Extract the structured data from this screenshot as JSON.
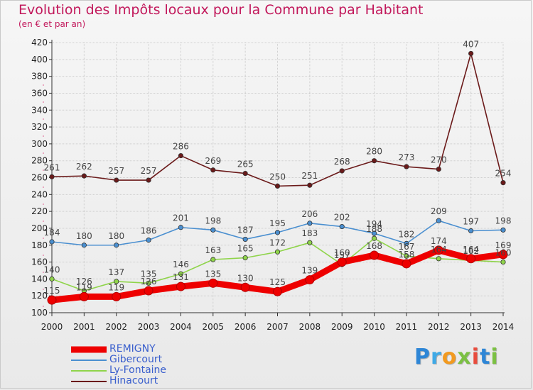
{
  "title": "Evolution des Impôts locaux pour la Commune par Habitant",
  "subtitle": "(en € et par an)",
  "logo": {
    "text": "Proxiti",
    "letters": [
      {
        "ch": "P",
        "color": "#2e86d6"
      },
      {
        "ch": "r",
        "color": "#3fa9e6"
      },
      {
        "ch": "o",
        "color": "#f29a1f"
      },
      {
        "ch": "x",
        "color": "#7bc043"
      },
      {
        "ch": "i",
        "color": "#e84c3d"
      },
      {
        "ch": "t",
        "color": "#2e86d6"
      },
      {
        "ch": "i",
        "color": "#7bc043"
      }
    ]
  },
  "chart_data": {
    "type": "line",
    "x": [
      "2000",
      "2001",
      "2002",
      "2003",
      "2004",
      "2005",
      "2006",
      "2007",
      "2008",
      "2009",
      "2010",
      "2011",
      "2012",
      "2013",
      "2014"
    ],
    "ylim": [
      100,
      420
    ],
    "yticks": [
      100,
      120,
      140,
      160,
      180,
      200,
      220,
      240,
      260,
      280,
      300,
      320,
      340,
      360,
      380,
      400,
      420
    ],
    "grid": true,
    "legend_position": "bottom-left",
    "series": [
      {
        "name": "Hinacourt",
        "color": "#6b1a1a",
        "values": [
          261,
          262,
          257,
          257,
          286,
          269,
          265,
          250,
          251,
          268,
          280,
          273,
          270,
          407,
          254
        ],
        "labels": [
          "261",
          "262",
          "257",
          "257",
          "286",
          "269",
          "265",
          "250",
          "251",
          "268",
          "280",
          "273",
          "270",
          "407",
          "254"
        ]
      },
      {
        "name": "Gibercourt",
        "color": "#4a8fd0",
        "values": [
          184,
          180,
          180,
          186,
          201,
          198,
          187,
          195,
          206,
          202,
          194,
          182,
          209,
          197,
          198
        ],
        "labels": [
          "184",
          "180",
          "180",
          "186",
          "201",
          "198",
          "187",
          "195",
          "206",
          "202",
          "194",
          "182",
          "209",
          "197",
          "198"
        ]
      },
      {
        "name": "Ly-Fontaine",
        "color": "#8fd44a",
        "values": [
          140,
          126,
          137,
          135,
          146,
          163,
          165,
          172,
          183,
          157,
          188,
          167,
          164,
          162,
          160
        ],
        "labels": [
          "140",
          "126",
          "137",
          "135",
          "146",
          "163",
          "165",
          "172",
          "183",
          "157",
          "188",
          "167",
          "164",
          "162",
          "160"
        ]
      },
      {
        "name": "REMIGNY",
        "color": "#ee0000",
        "values": [
          115,
          119,
          119,
          126,
          131,
          135,
          130,
          125,
          139,
          160,
          168,
          158,
          174,
          164,
          169
        ],
        "labels": [
          "115",
          "119",
          "119",
          "126",
          "131",
          "135",
          "130",
          "125",
          "139",
          "160",
          "168",
          "158",
          "174",
          "164",
          "169"
        ]
      }
    ],
    "legend": [
      {
        "name": "REMIGNY",
        "color": "#ee0000",
        "width": 9
      },
      {
        "name": "Gibercourt",
        "color": "#4a8fd0",
        "width": 2
      },
      {
        "name": "Ly-Fontaine",
        "color": "#8fd44a",
        "width": 2
      },
      {
        "name": "Hinacourt",
        "color": "#6b1a1a",
        "width": 2
      }
    ]
  }
}
